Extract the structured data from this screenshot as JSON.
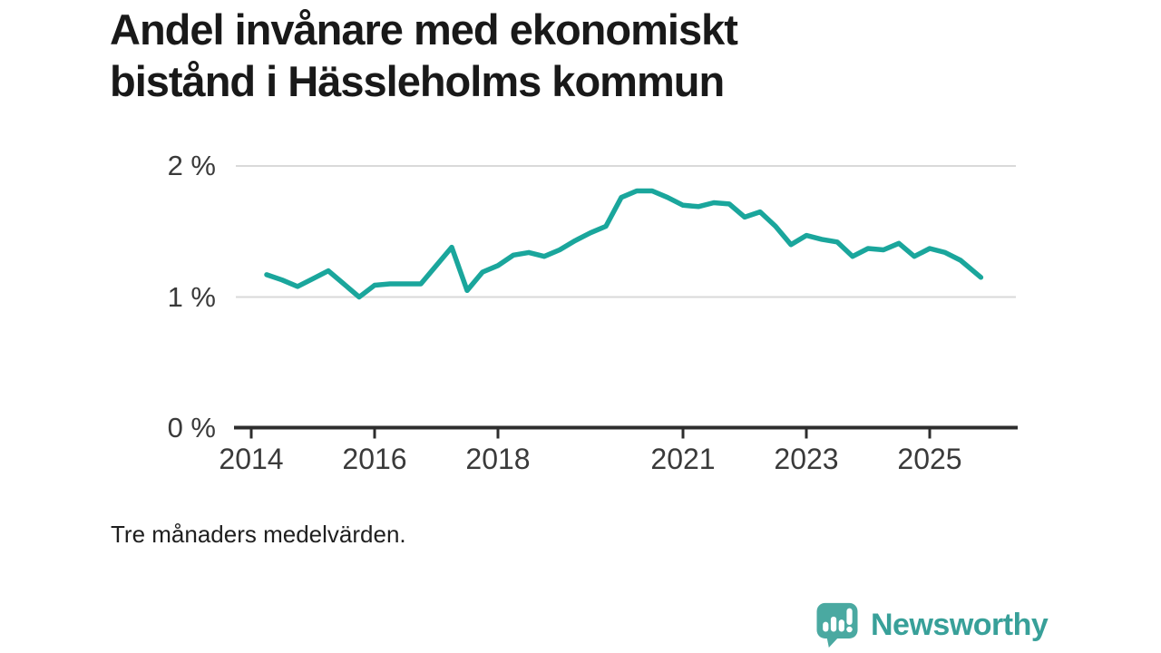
{
  "title": "Andel invånare med ekonomiskt bistånd i Hässleholms kommun",
  "footnote": "Tre månaders medelvärden.",
  "logo": {
    "brand": "Newsworthy",
    "icon": "bar-chart-speech-bubble"
  },
  "colors": {
    "line": "#1aa69c",
    "grid": "#d9d9d9",
    "axis": "#2d2d2d",
    "tick_text": "#3a3a3a",
    "title_text": "#191919",
    "logo_badge": "#4aa9a1",
    "logo_text": "#38a099",
    "background": "#ffffff"
  },
  "chart_data": {
    "type": "line",
    "title": "Andel invånare med ekonomiskt bistånd i Hässleholms kommun",
    "note": "Tre månaders medelvärden.",
    "xlabel": "",
    "ylabel": "",
    "unit": "%",
    "xlim": [
      2013.75,
      2026.4
    ],
    "ylim": [
      0,
      2.15
    ],
    "grid": "horizontal",
    "legend": "none",
    "x_ticks": [
      {
        "value": 2014,
        "label": "2014"
      },
      {
        "value": 2016,
        "label": "2016"
      },
      {
        "value": 2018,
        "label": "2018"
      },
      {
        "value": 2021,
        "label": "2021"
      },
      {
        "value": 2023,
        "label": "2023"
      },
      {
        "value": 2025,
        "label": "2025"
      }
    ],
    "y_ticks": [
      {
        "value": 0,
        "label": "0 %"
      },
      {
        "value": 1,
        "label": "1 %"
      },
      {
        "value": 2,
        "label": "2 %"
      }
    ],
    "series": [
      {
        "name": "Andel invånare med ekonomiskt bistånd",
        "color": "#1aa69c",
        "points": [
          [
            2014.25,
            1.17
          ],
          [
            2014.5,
            1.13
          ],
          [
            2014.75,
            1.08
          ],
          [
            2015.0,
            1.14
          ],
          [
            2015.25,
            1.2
          ],
          [
            2015.5,
            1.1
          ],
          [
            2015.75,
            1.0
          ],
          [
            2016.0,
            1.09
          ],
          [
            2016.25,
            1.1
          ],
          [
            2016.5,
            1.1
          ],
          [
            2016.75,
            1.1
          ],
          [
            2017.0,
            1.24
          ],
          [
            2017.25,
            1.38
          ],
          [
            2017.5,
            1.05
          ],
          [
            2017.75,
            1.19
          ],
          [
            2018.0,
            1.24
          ],
          [
            2018.25,
            1.32
          ],
          [
            2018.5,
            1.34
          ],
          [
            2018.75,
            1.31
          ],
          [
            2019.0,
            1.36
          ],
          [
            2019.25,
            1.43
          ],
          [
            2019.5,
            1.49
          ],
          [
            2019.75,
            1.54
          ],
          [
            2020.0,
            1.76
          ],
          [
            2020.25,
            1.81
          ],
          [
            2020.5,
            1.81
          ],
          [
            2020.75,
            1.76
          ],
          [
            2021.0,
            1.7
          ],
          [
            2021.25,
            1.69
          ],
          [
            2021.5,
            1.72
          ],
          [
            2021.75,
            1.71
          ],
          [
            2022.0,
            1.61
          ],
          [
            2022.25,
            1.65
          ],
          [
            2022.5,
            1.54
          ],
          [
            2022.75,
            1.4
          ],
          [
            2023.0,
            1.47
          ],
          [
            2023.25,
            1.44
          ],
          [
            2023.5,
            1.42
          ],
          [
            2023.75,
            1.31
          ],
          [
            2024.0,
            1.37
          ],
          [
            2024.25,
            1.36
          ],
          [
            2024.5,
            1.41
          ],
          [
            2024.75,
            1.31
          ],
          [
            2025.0,
            1.37
          ],
          [
            2025.25,
            1.34
          ],
          [
            2025.5,
            1.28
          ],
          [
            2025.83,
            1.15
          ]
        ]
      }
    ]
  }
}
